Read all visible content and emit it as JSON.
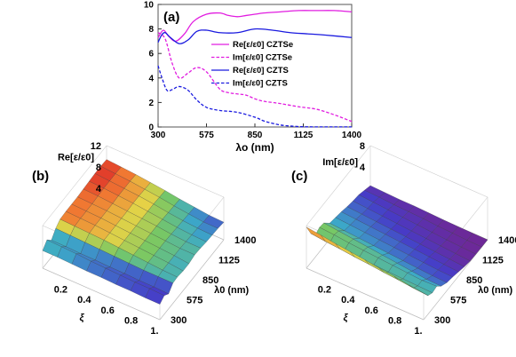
{
  "panels": {
    "a_tag": "(a)",
    "b_tag": "(b)",
    "c_tag": "(c)"
  },
  "chart_data": [
    {
      "type": "line",
      "panel": "(a)",
      "xlabel": "λo (nm)",
      "ylabel": "",
      "xlim": [
        300,
        1400
      ],
      "ylim": [
        0,
        10
      ],
      "xticks": [
        "300",
        "575",
        "850",
        "1125",
        "1400"
      ],
      "yticks": [
        "0",
        "2",
        "4",
        "6",
        "8",
        "10"
      ],
      "legend_position": "center-right",
      "series": [
        {
          "name": "Re[ε/ε0] CZTSe",
          "color": "#e11de0",
          "dash": false,
          "x": [
            300,
            330,
            360,
            400,
            450,
            500,
            575,
            650,
            700,
            750,
            800,
            850,
            900,
            1000,
            1100,
            1200,
            1300,
            1400
          ],
          "y": [
            7.3,
            7.9,
            7.4,
            7.0,
            7.6,
            8.6,
            9.2,
            9.3,
            9.1,
            9.0,
            9.1,
            9.2,
            9.3,
            9.4,
            9.5,
            9.5,
            9.5,
            9.4
          ]
        },
        {
          "name": "Im[ε/ε0] CZTSe",
          "color": "#e11de0",
          "dash": true,
          "x": [
            300,
            340,
            380,
            420,
            470,
            520,
            575,
            650,
            700,
            750,
            800,
            850,
            900,
            950,
            1000,
            1100,
            1200,
            1300,
            1400
          ],
          "y": [
            7.7,
            7.2,
            5.2,
            4.0,
            4.4,
            4.85,
            4.5,
            3.1,
            2.8,
            2.7,
            2.6,
            2.3,
            2.1,
            2.0,
            1.9,
            1.65,
            1.45,
            1.0,
            0.45
          ]
        },
        {
          "name": "Re[ε/ε0] CZTS",
          "color": "#1a1adf",
          "dash": false,
          "x": [
            300,
            320,
            340,
            370,
            420,
            470,
            520,
            575,
            650,
            750,
            850,
            950,
            1050,
            1150,
            1250,
            1400
          ],
          "y": [
            6.9,
            7.5,
            7.7,
            7.3,
            6.8,
            7.1,
            7.8,
            7.9,
            7.7,
            7.7,
            8.0,
            7.9,
            7.7,
            7.6,
            7.5,
            7.3
          ]
        },
        {
          "name": "Im[ε/ε0] CZTS",
          "color": "#1a1adf",
          "dash": true,
          "x": [
            300,
            320,
            350,
            380,
            420,
            470,
            520,
            575,
            650,
            750,
            850,
            900,
            950,
            1000,
            1050,
            1100,
            1125,
            1200,
            1300,
            1400
          ],
          "y": [
            5.0,
            4.1,
            3.0,
            3.05,
            3.3,
            3.0,
            2.2,
            1.6,
            1.35,
            1.2,
            0.8,
            0.5,
            0.3,
            0.15,
            0.08,
            0.03,
            0.02,
            0.01,
            0.01,
            0.01
          ]
        }
      ]
    },
    {
      "type": "surface",
      "panel": "(b)",
      "zlabel": "Re[ε/ε0]",
      "xlabel": "ξ",
      "ylabel": "λ0 (nm)",
      "zticks": [
        "4",
        "8",
        "12"
      ],
      "zlim": [
        4,
        12
      ],
      "xticks": [
        "0.2",
        "0.4",
        "0.6",
        "0.8",
        "1."
      ],
      "yticks": [
        "1400",
        "1125",
        "850",
        "575",
        "300"
      ],
      "colormap": "rainbow",
      "xi": [
        0,
        0.125,
        0.25,
        0.375,
        0.5,
        0.625,
        0.75,
        0.875,
        1.0
      ],
      "lambda": [
        300,
        375,
        450,
        525,
        600,
        700,
        800,
        900,
        1000,
        1100,
        1200,
        1300,
        1400
      ],
      "z": [
        [
          7.3,
          8.3,
          7.2,
          8.4,
          9.1,
          9.2,
          9.2,
          9.2,
          9.3,
          9.4,
          9.5,
          9.5,
          9.4
        ],
        [
          7.3,
          8.2,
          7.2,
          8.3,
          9.0,
          9.1,
          9.1,
          9.1,
          9.2,
          9.3,
          9.3,
          9.3,
          9.2
        ],
        [
          7.2,
          8.1,
          7.1,
          8.2,
          8.9,
          9.0,
          9.0,
          9.0,
          9.0,
          9.1,
          9.1,
          9.1,
          9.0
        ],
        [
          7.1,
          7.9,
          7.1,
          8.1,
          8.8,
          8.8,
          8.8,
          8.8,
          8.8,
          8.9,
          8.9,
          8.8,
          8.7
        ],
        [
          7.1,
          7.8,
          7.0,
          8.0,
          8.6,
          8.6,
          8.6,
          8.6,
          8.6,
          8.6,
          8.6,
          8.5,
          8.4
        ],
        [
          7.0,
          7.7,
          7.0,
          7.9,
          8.4,
          8.4,
          8.4,
          8.4,
          8.4,
          8.3,
          8.2,
          8.1,
          8.0
        ],
        [
          7.0,
          7.6,
          6.9,
          7.8,
          8.2,
          8.2,
          8.2,
          8.2,
          8.1,
          8.0,
          7.9,
          7.8,
          7.7
        ],
        [
          6.9,
          7.6,
          6.9,
          7.8,
          8.0,
          8.0,
          8.0,
          8.0,
          7.9,
          7.8,
          7.7,
          7.5,
          7.4
        ],
        [
          6.9,
          7.5,
          6.8,
          7.8,
          7.9,
          7.7,
          7.7,
          8.0,
          7.9,
          7.7,
          7.6,
          7.5,
          7.3
        ]
      ]
    },
    {
      "type": "surface",
      "panel": "(c)",
      "zlabel": "Im[ε/ε0]",
      "xlabel": "ξ",
      "ylabel": "λ0 (nm)",
      "zticks": [
        "4",
        "8"
      ],
      "zlim": [
        0,
        8
      ],
      "xticks": [
        "0.2",
        "0.4",
        "0.6",
        "0.8",
        "1."
      ],
      "yticks": [
        "1400",
        "1125",
        "850",
        "575",
        "300"
      ],
      "colormap": "rainbow",
      "xi": [
        0,
        0.125,
        0.25,
        0.375,
        0.5,
        0.625,
        0.75,
        0.875,
        1.0
      ],
      "lambda": [
        300,
        375,
        450,
        525,
        600,
        700,
        800,
        900,
        1000,
        1100,
        1200,
        1300,
        1400
      ],
      "z": [
        [
          7.7,
          5.5,
          4.1,
          4.6,
          4.4,
          3.0,
          2.7,
          2.4,
          2.0,
          1.7,
          1.5,
          1.0,
          0.5
        ],
        [
          7.4,
          5.2,
          3.9,
          4.4,
          4.1,
          2.8,
          2.5,
          2.2,
          1.8,
          1.5,
          1.3,
          0.9,
          0.4
        ],
        [
          7.0,
          5.0,
          3.7,
          4.1,
          3.8,
          2.6,
          2.3,
          2.0,
          1.6,
          1.3,
          1.1,
          0.7,
          0.3
        ],
        [
          6.7,
          4.7,
          3.6,
          3.9,
          3.5,
          2.4,
          2.1,
          1.8,
          1.4,
          1.1,
          0.9,
          0.6,
          0.3
        ],
        [
          6.4,
          4.5,
          3.4,
          3.7,
          3.2,
          2.2,
          1.9,
          1.6,
          1.2,
          0.9,
          0.7,
          0.5,
          0.2
        ],
        [
          6.0,
          4.2,
          3.3,
          3.5,
          2.9,
          2.0,
          1.7,
          1.4,
          1.0,
          0.7,
          0.5,
          0.3,
          0.1
        ],
        [
          5.7,
          4.0,
          3.2,
          3.3,
          2.6,
          1.8,
          1.5,
          1.2,
          0.8,
          0.5,
          0.3,
          0.2,
          0.05
        ],
        [
          5.3,
          3.7,
          3.1,
          3.1,
          2.3,
          1.6,
          1.3,
          1.0,
          0.6,
          0.3,
          0.15,
          0.05,
          0.02
        ],
        [
          5.0,
          3.5,
          3.0,
          3.2,
          2.2,
          1.5,
          1.2,
          0.8,
          0.4,
          0.1,
          0.03,
          0.01,
          0.01
        ]
      ]
    }
  ]
}
